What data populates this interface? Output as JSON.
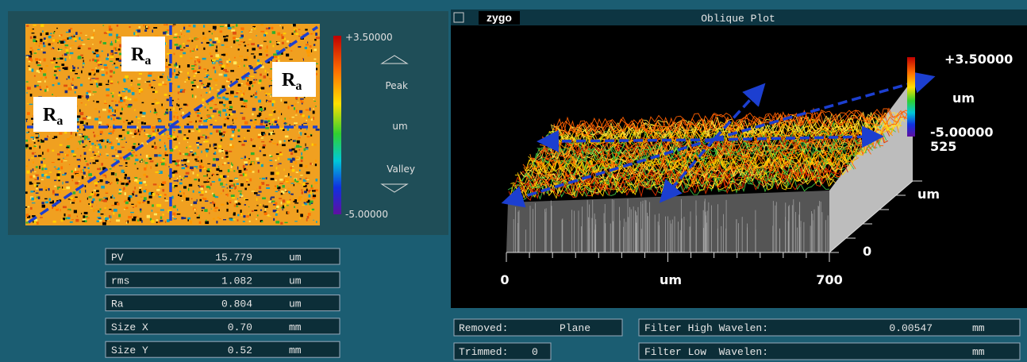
{
  "left_panel": {
    "labels": [
      "R",
      "R",
      "R"
    ],
    "subscripts": [
      "a",
      "a",
      "a"
    ],
    "colorbar": {
      "max": "+3.50000",
      "peak": "Peak",
      "unit": "um",
      "valley": "Valley",
      "min": "-5.00000"
    }
  },
  "results": [
    {
      "label": "PV",
      "value": "15.779",
      "unit": "um"
    },
    {
      "label": "rms",
      "value": "1.082",
      "unit": "um"
    },
    {
      "label": "Ra",
      "value": "0.804",
      "unit": "um"
    },
    {
      "label": "Size X",
      "value": "0.70",
      "unit": "mm"
    },
    {
      "label": "Size Y",
      "value": "0.52",
      "unit": "mm"
    }
  ],
  "plot": {
    "logo": "zygo",
    "title": "Oblique Plot",
    "colorbar": {
      "max": "+3.50000",
      "unit": "um",
      "min": "-5.00000"
    },
    "y_axis": {
      "max": "525",
      "unit": "um",
      "min": "0"
    },
    "x_axis": {
      "min": "0",
      "unit": "um",
      "max": "700"
    }
  },
  "footer": {
    "removed_label": "Removed:",
    "removed_value": "Plane",
    "trimmed_label": "Trimmed:",
    "trimmed_value": "0",
    "filter_high_label": "Filter High Wavelen:",
    "filter_high_value": "0.00547",
    "filter_high_unit": "mm",
    "filter_low_label": "Filter Low  Wavelen:",
    "filter_low_unit": "mm"
  }
}
